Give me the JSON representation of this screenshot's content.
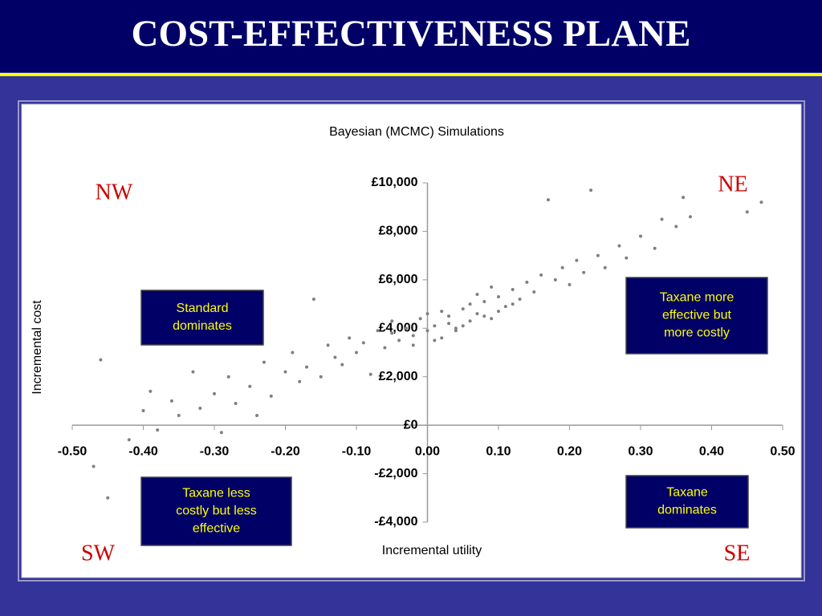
{
  "chart_data": {
    "type": "scatter",
    "slide_title": "COST-EFFECTIVENESS PLANE",
    "title": "Bayesian (MCMC) Simulations",
    "x_label": "Incremental utility",
    "y_label": "Incremental cost",
    "quadrants": {
      "nw": "NW",
      "ne": "NE",
      "sw": "SW",
      "se": "SE"
    },
    "annotations": [
      {
        "lines": [
          "Standard",
          "dominates"
        ]
      },
      {
        "lines": [
          "Taxane more",
          "effective but",
          "more costly"
        ]
      },
      {
        "lines": [
          "Taxane less",
          "costly but less",
          "effective"
        ]
      },
      {
        "lines": [
          "Taxane",
          "dominates"
        ]
      }
    ],
    "color": "#808080",
    "xlim": [
      -0.5,
      0.5
    ],
    "ylim": [
      -4000,
      10000
    ],
    "xticks": [
      {
        "value": -0.5,
        "label": "-0.50"
      },
      {
        "value": -0.4,
        "label": "-0.40"
      },
      {
        "value": -0.3,
        "label": "-0.30"
      },
      {
        "value": -0.2,
        "label": "-0.20"
      },
      {
        "value": -0.1,
        "label": "-0.10"
      },
      {
        "value": 0,
        "label": "0.00"
      },
      {
        "value": 0.1,
        "label": "0.10"
      },
      {
        "value": 0.2,
        "label": "0.20"
      },
      {
        "value": 0.3,
        "label": "0.30"
      },
      {
        "value": 0.4,
        "label": "0.40"
      },
      {
        "value": 0.5,
        "label": "0.50"
      }
    ],
    "yticks": [
      {
        "value": -4000,
        "label": "-£4,000"
      },
      {
        "value": -2000,
        "label": "-£2,000"
      },
      {
        "value": 0,
        "label": "£0"
      },
      {
        "value": 2000,
        "label": "£2,000"
      },
      {
        "value": 4000,
        "label": "£4,000"
      },
      {
        "value": 6000,
        "label": "£6,000"
      },
      {
        "value": 8000,
        "label": "£8,000"
      },
      {
        "value": 10000,
        "label": "£10,000"
      }
    ],
    "x": [
      -0.46,
      -0.47,
      -0.45,
      -0.42,
      -0.4,
      -0.39,
      -0.38,
      -0.36,
      -0.35,
      -0.33,
      -0.32,
      -0.3,
      -0.29,
      -0.28,
      -0.27,
      -0.25,
      -0.24,
      -0.23,
      -0.22,
      -0.2,
      -0.19,
      -0.18,
      -0.17,
      -0.16,
      -0.15,
      -0.14,
      -0.13,
      -0.12,
      -0.11,
      -0.1,
      -0.09,
      -0.08,
      -0.07,
      -0.06,
      -0.05,
      -0.04,
      -0.03,
      -0.02,
      -0.01,
      0.0,
      0.01,
      0.02,
      0.03,
      0.04,
      0.05,
      0.06,
      0.07,
      0.08,
      0.09,
      0.1,
      0.11,
      0.12,
      0.13,
      0.14,
      0.15,
      0.16,
      0.17,
      0.18,
      0.19,
      0.2,
      0.21,
      0.22,
      0.23,
      0.24,
      0.25,
      0.27,
      0.28,
      0.3,
      0.32,
      0.33,
      0.35,
      0.36,
      0.37,
      0.45,
      0.47,
      0.02,
      0.04,
      0.06,
      -0.02,
      0.05,
      0.08,
      0.01,
      0.03,
      0.07,
      0.1,
      -0.05,
      0.0,
      0.12,
      0.09
    ],
    "values": [
      2700,
      -1700,
      -3000,
      -600,
      600,
      1400,
      -200,
      1000,
      400,
      2200,
      700,
      1300,
      -300,
      2000,
      900,
      1600,
      400,
      2600,
      1200,
      2200,
      3000,
      1800,
      2400,
      5200,
      2000,
      3300,
      2800,
      2500,
      3600,
      3000,
      3400,
      2100,
      3900,
      3200,
      4300,
      3500,
      4000,
      3700,
      4400,
      3900,
      4100,
      3600,
      4500,
      4000,
      4800,
      4300,
      4600,
      5100,
      4400,
      5300,
      4900,
      5600,
      5200,
      5900,
      5500,
      6200,
      9300,
      6000,
      6500,
      5800,
      6800,
      6300,
      9700,
      7000,
      6500,
      7400,
      6900,
      7800,
      7300,
      8500,
      8200,
      9400,
      8600,
      8800,
      9200,
      4700,
      3900,
      5000,
      3300,
      4100,
      4500,
      3500,
      4200,
      5400,
      4700,
      3800,
      4600,
      5000,
      5700
    ]
  }
}
